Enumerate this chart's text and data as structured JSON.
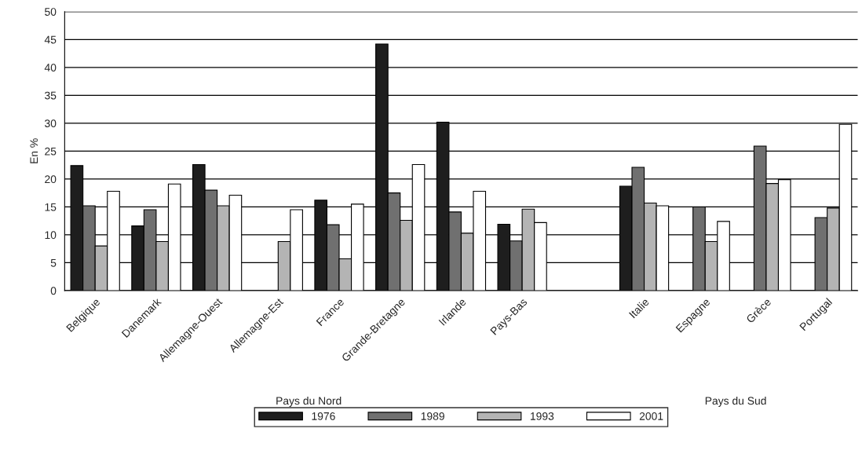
{
  "chart_data": {
    "type": "bar",
    "ylabel": "En %",
    "categories": [
      "Belgique",
      "Danemark",
      "Allemagne-Ouest",
      "Allemagne-Est",
      "France",
      "Grande-Bretagne",
      "Irlande",
      "Pays-Bas",
      null,
      "Italie",
      "Espagne",
      "Grèce",
      "Portugal"
    ],
    "series": [
      {
        "name": "1976",
        "color": "#1e1e1e",
        "values": [
          22.4,
          11.6,
          22.6,
          null,
          16.2,
          44.2,
          30.2,
          11.9,
          null,
          18.7,
          null,
          null,
          null
        ]
      },
      {
        "name": "1989",
        "color": "#707070",
        "values": [
          15.2,
          14.5,
          18.0,
          null,
          11.8,
          17.5,
          14.1,
          8.9,
          null,
          22.1,
          15.0,
          25.9,
          13.1
        ]
      },
      {
        "name": "1993",
        "color": "#b4b4b4",
        "values": [
          8.0,
          8.8,
          15.2,
          8.8,
          5.7,
          12.6,
          10.3,
          14.6,
          null,
          15.7,
          8.8,
          19.2,
          14.8
        ]
      },
      {
        "name": "2001",
        "color": "#ffffff",
        "values": [
          17.8,
          19.1,
          17.1,
          14.5,
          15.5,
          22.6,
          17.8,
          12.2,
          null,
          15.2,
          12.4,
          19.9,
          29.8
        ]
      }
    ],
    "ylim": [
      0,
      50
    ],
    "yticks": [
      0,
      5,
      10,
      15,
      20,
      25,
      30,
      35,
      40,
      45,
      50
    ],
    "grid": "y",
    "legend": "bottom",
    "annotations": [
      "Pays du Nord",
      "Pays du Sud"
    ]
  }
}
